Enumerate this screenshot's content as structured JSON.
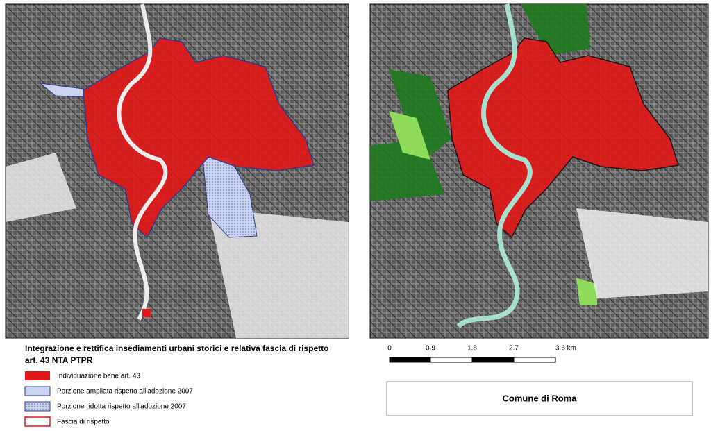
{
  "legend": {
    "title": "Integrazione e rettifica insediamenti urbani storici e relativa fascia di rispetto",
    "subtitle": "art. 43 NTA PTPR",
    "items": [
      "Individuazione bene art. 43",
      "Porzione ampliata rispetto all'adozione 2007",
      "Porzione ridotta rispetto all'adozione 2007",
      "Fascia di rispetto"
    ]
  },
  "scale_bar": {
    "labels": [
      "0",
      "0.9",
      "1.8",
      "2.7",
      "3.6 km"
    ]
  },
  "map_title": "Comune di Roma"
}
